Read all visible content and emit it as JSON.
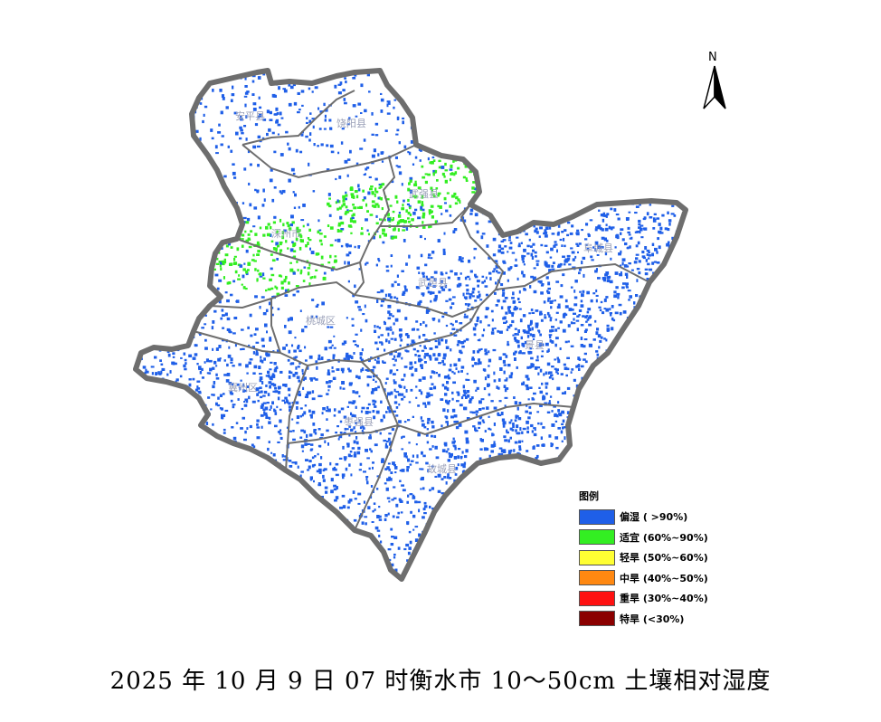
{
  "map": {
    "title_caption": "2025 年 10 月 9 日 07 时衡水市 10～50cm 土壤相对湿度",
    "north_label": "N",
    "county_labels": [
      {
        "id": "anping",
        "text": "安平县"
      },
      {
        "id": "raoyang",
        "text": "饶阳县"
      },
      {
        "id": "wuqiang",
        "text": "武强县"
      },
      {
        "id": "shenzhou",
        "text": "深州市"
      },
      {
        "id": "wuyi",
        "text": "武邑县"
      },
      {
        "id": "taocheng",
        "text": "桃城区"
      },
      {
        "id": "fucheng",
        "text": "阜城县"
      },
      {
        "id": "jingxian",
        "text": "景县"
      },
      {
        "id": "jizhou",
        "text": "冀州区"
      },
      {
        "id": "zaoqiang",
        "text": "枣强县"
      },
      {
        "id": "gucheng",
        "text": "故城县"
      }
    ],
    "colors": {
      "wet": "#1f5fe8",
      "suitable": "#33ee22",
      "light_drought": "#ffff33",
      "moderate_drought": "#ff8811",
      "severe_drought": "#ff1111",
      "extreme_drought": "#8b0000",
      "border": "#6e6e6e"
    }
  },
  "legend": {
    "title": "图例",
    "items": [
      {
        "label": "偏湿 ( >90%)",
        "color": "#1f5fe8"
      },
      {
        "label": "适宜 (60%~90%)",
        "color": "#33ee22"
      },
      {
        "label": "轻旱 (50%~60%)",
        "color": "#ffff33"
      },
      {
        "label": "中旱 (40%~50%)",
        "color": "#ff8811"
      },
      {
        "label": "重旱 (30%~40%)",
        "color": "#ff1111"
      },
      {
        "label": "特旱 (<30%)",
        "color": "#8b0000"
      }
    ]
  }
}
